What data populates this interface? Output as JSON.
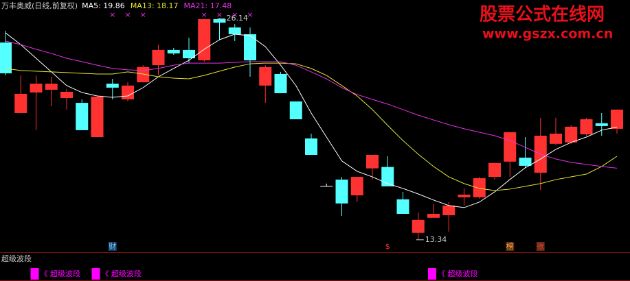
{
  "chart_data": {
    "type": "candlestick",
    "title": "万丰奥威(日线,前复权)",
    "title_color": "#c8c8c8",
    "up_color": "#ff3232",
    "down_color": "#54ffff",
    "flat_color": "#ffffff",
    "ylim": [
      12.62,
      27.21
    ],
    "open": [
      24.75,
      20.67,
      21.86,
      22.02,
      21.54,
      21.26,
      19.28,
      22.37,
      21.46,
      22.45,
      23.44,
      24.32,
      24.32,
      23.72,
      26.1,
      25.62,
      25.23,
      22.26,
      22.93,
      21.34,
      19.2,
      16.43,
      16.82,
      15.91,
      17.47,
      17.55,
      15.68,
      13.74,
      14.61,
      14.76,
      15.8,
      15.8,
      16.98,
      17.86,
      18.09,
      17.22,
      18.89,
      18.97,
      19.44,
      20.08,
      19.76
    ],
    "high": [
      25.43,
      22.85,
      22.85,
      22.77,
      22.06,
      21.46,
      21.62,
      22.65,
      22.45,
      23.44,
      24.63,
      24.44,
      25.03,
      26.1,
      26.14,
      25.82,
      25.62,
      23.44,
      23.05,
      21.34,
      19.48,
      16.59,
      16.98,
      16.98,
      18.25,
      18.17,
      16.11,
      14.92,
      15.4,
      15.52,
      16.31,
      16.98,
      17.78,
      19.56,
      19.28,
      20.39,
      20.39,
      19.97,
      20.39,
      20.67,
      20.87
    ],
    "low": [
      22.85,
      20.67,
      19.68,
      21.07,
      20.87,
      19.68,
      19.28,
      21.46,
      21.34,
      22.45,
      22.85,
      24.04,
      23.56,
      23.64,
      24.91,
      24.83,
      22.77,
      21.26,
      21.82,
      20.31,
      18.25,
      16.43,
      14.72,
      15.52,
      16.82,
      16.43,
      14.84,
      13.34,
      14.61,
      13.81,
      15.32,
      15.72,
      16.82,
      16.98,
      17.51,
      16.23,
      18.81,
      18.89,
      19.36,
      19.36,
      19.48
    ],
    "close": [
      22.97,
      21.78,
      22.37,
      22.37,
      21.9,
      19.68,
      21.62,
      22.14,
      22.26,
      23.33,
      24.32,
      24.12,
      23.84,
      26.1,
      25.9,
      25.23,
      23.72,
      23.33,
      21.82,
      20.31,
      18.25,
      16.43,
      15.44,
      16.98,
      18.25,
      16.43,
      14.84,
      14.49,
      14.84,
      15.32,
      15.95,
      16.9,
      17.78,
      19.56,
      17.62,
      19.36,
      19.48,
      19.88,
      20.31,
      19.92,
      20.87
    ],
    "series": [
      {
        "name": "MA5: 19.86",
        "color": "#ffffff",
        "values": [
          25.31,
          24.63,
          23.84,
          23.05,
          22.26,
          21.86,
          21.66,
          21.58,
          21.66,
          22.14,
          22.77,
          23.25,
          23.72,
          24.36,
          24.91,
          25.23,
          25.15,
          24.51,
          23.44,
          22.26,
          20.67,
          19.28,
          17.9,
          17.3,
          16.98,
          16.59,
          16.31,
          15.99,
          15.64,
          15.32,
          15.2,
          15.52,
          16.11,
          16.83,
          17.5,
          18.01,
          18.57,
          18.97,
          19.28,
          19.68,
          19.86
        ]
      },
      {
        "name": "MA13: 18.17",
        "color": "#e6e632",
        "values": [
          23.25,
          23.13,
          23.09,
          23.05,
          23.01,
          22.97,
          22.93,
          22.93,
          23.05,
          22.93,
          22.77,
          22.69,
          22.65,
          22.85,
          23.09,
          23.33,
          23.52,
          23.56,
          23.56,
          23.52,
          23.25,
          22.85,
          22.26,
          21.66,
          20.87,
          19.96,
          19.08,
          18.29,
          17.58,
          16.98,
          16.59,
          16.31,
          16.19,
          16.27,
          16.43,
          16.59,
          16.82,
          16.98,
          17.14,
          17.58,
          18.17
        ]
      },
      {
        "name": "MA21: 17.48",
        "color": "#e632e6",
        "values": [
          24.83,
          24.63,
          24.36,
          24.12,
          23.84,
          23.64,
          23.44,
          23.25,
          23.17,
          23.13,
          23.25,
          23.44,
          23.56,
          23.56,
          23.56,
          23.6,
          23.64,
          23.64,
          23.64,
          23.44,
          23.05,
          22.65,
          22.14,
          21.74,
          21.46,
          21.19,
          20.87,
          20.55,
          20.27,
          20.0,
          19.76,
          19.56,
          19.36,
          19.08,
          18.69,
          18.29,
          18.01,
          17.82,
          17.7,
          17.58,
          17.48
        ]
      }
    ],
    "top_marks": [
      null,
      null,
      null,
      null,
      null,
      null,
      null,
      "×",
      "×",
      "×",
      null,
      null,
      null,
      "×",
      "×",
      "×",
      "×",
      null,
      null,
      null,
      null,
      null,
      null,
      null,
      null,
      null,
      null,
      null,
      null,
      null,
      null,
      null,
      null,
      null,
      null,
      null,
      null,
      null,
      null,
      null,
      null
    ],
    "top_mark_color": "#e632e6",
    "events": [
      null,
      null,
      null,
      null,
      null,
      null,
      null,
      {
        "text": "财",
        "color": "#7fd4ff",
        "background": "#163a66"
      },
      null,
      null,
      null,
      null,
      null,
      null,
      null,
      null,
      null,
      null,
      null,
      null,
      null,
      null,
      null,
      null,
      null,
      {
        "text": "$",
        "color": "#ff3232",
        "background": "#000000"
      },
      null,
      null,
      null,
      null,
      null,
      null,
      null,
      {
        "text": "榜",
        "color": "#ffb040",
        "background": "#5a2a10"
      },
      null,
      {
        "text": "张",
        "color": "#ff4040",
        "background": "#5a2a10"
      },
      null,
      null,
      null,
      null,
      null
    ],
    "sub_panel": {
      "title": "超级波段",
      "color": "#ff00ff",
      "signals": [
        null,
        null,
        "《 超级波段",
        null,
        null,
        null,
        "《 超级波段",
        null,
        null,
        null,
        null,
        null,
        null,
        null,
        null,
        null,
        null,
        null,
        null,
        null,
        null,
        null,
        null,
        null,
        null,
        null,
        null,
        null,
        "《 超级波段",
        null,
        null,
        null,
        null,
        null,
        null,
        null,
        null,
        null,
        null,
        null,
        null
      ]
    },
    "watermark": {
      "title": "股票公式在线网",
      "url": "www.gszx.com.cn",
      "color": "#e8101a"
    }
  }
}
